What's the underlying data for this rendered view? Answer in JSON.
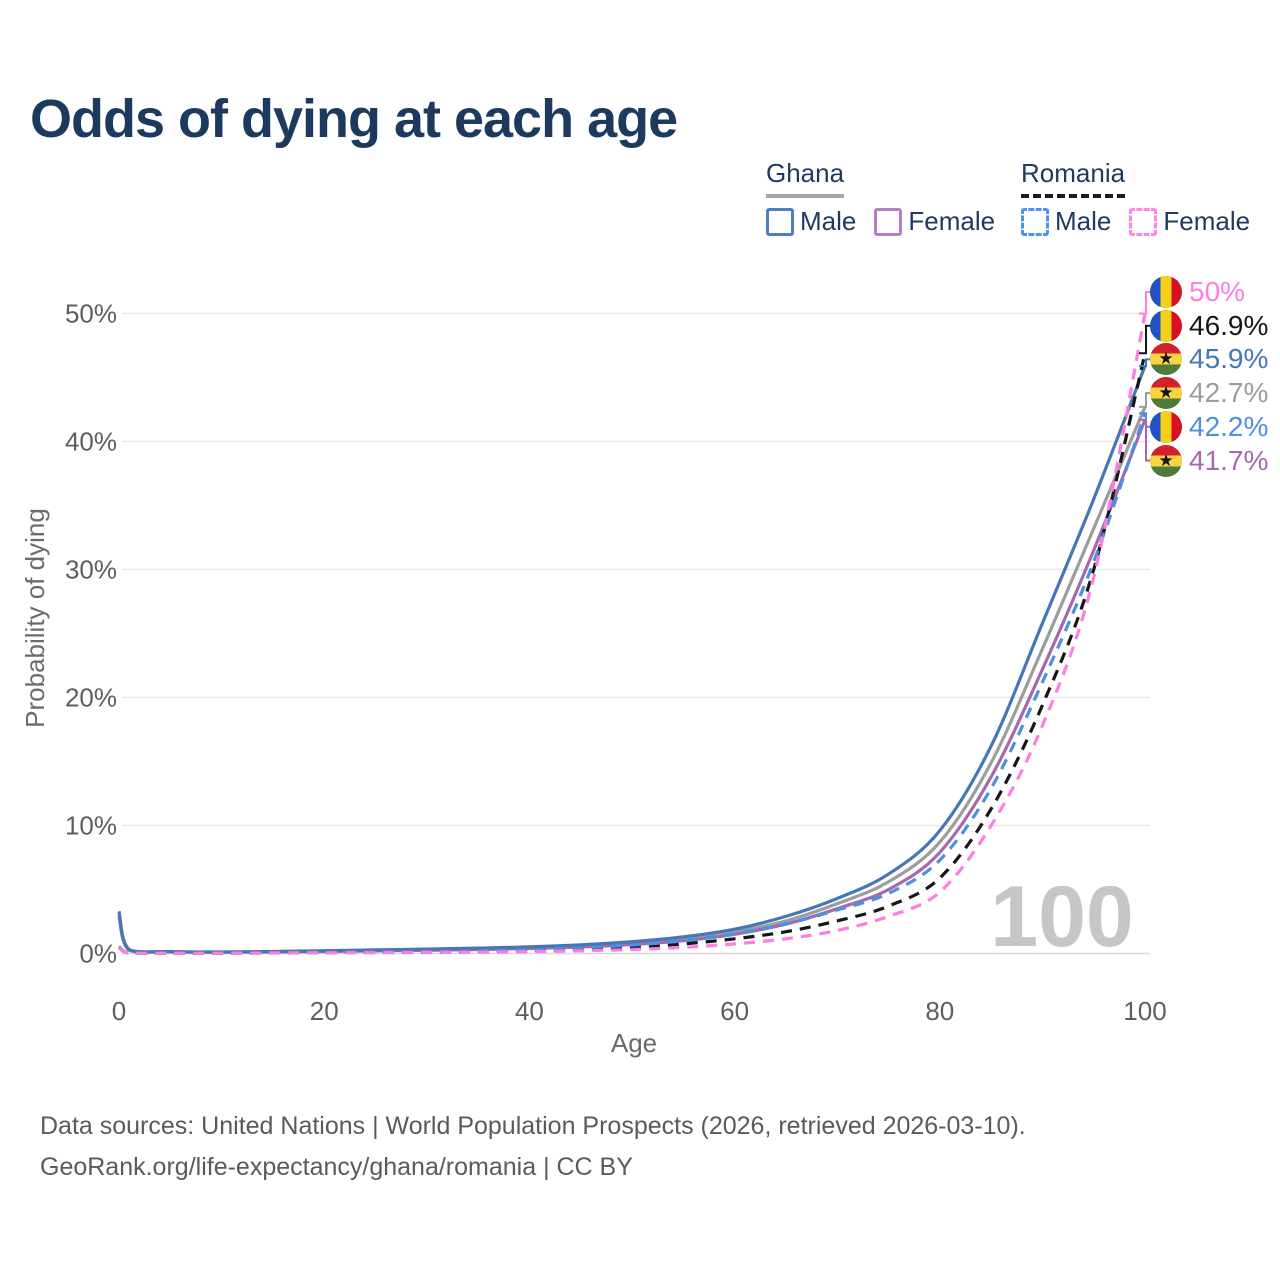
{
  "title": "Odds of dying at each age",
  "legend": {
    "ghana": {
      "title": "Ghana",
      "male_label": "Male",
      "female_label": "Female",
      "underline_color": "#a6a6a6",
      "underline_style": "solid",
      "male_swatch_color": "#4e7fc0",
      "female_swatch_color": "#b77ec4",
      "swatch_border_style": "solid"
    },
    "romania": {
      "title": "Romania",
      "male_label": "Male",
      "female_label": "Female",
      "underline_color": "#1a1a1a",
      "underline_style": "dashed",
      "male_swatch_color": "#4e94ea",
      "female_swatch_color": "#ff85e8",
      "swatch_border_style": "dashed"
    }
  },
  "axes": {
    "x_label": "Age",
    "y_label": "Probability of dying",
    "x_ticks": [
      {
        "value": 0,
        "label": "0"
      },
      {
        "value": 20,
        "label": "20"
      },
      {
        "value": 40,
        "label": "40"
      },
      {
        "value": 60,
        "label": "60"
      },
      {
        "value": 80,
        "label": "80"
      },
      {
        "value": 100,
        "label": "100"
      }
    ],
    "y_ticks": [
      {
        "value": 0,
        "label": "0%"
      },
      {
        "value": 10,
        "label": "10%"
      },
      {
        "value": 20,
        "label": "20%"
      },
      {
        "value": 30,
        "label": "30%"
      },
      {
        "value": 40,
        "label": "40%"
      },
      {
        "value": 50,
        "label": "50%"
      }
    ]
  },
  "watermark": "100",
  "footer": {
    "line1": "Data sources: United Nations | World Population Prospects (2026, retrieved 2026-03-10).",
    "line2": "GeoRank.org/life-expectancy/ghana/romania | CC BY"
  },
  "colors": {
    "title_text": "#1d3a5e",
    "legend_text": "#1e3a5f",
    "tick_text": "#5e5e5e",
    "axis_label_text": "#6b6b6b",
    "gridline": "#e8e8e8",
    "zero_gridline": "#dadada",
    "watermark": "#c6c6c6",
    "footer_text": "#5a5a5a"
  },
  "flags": {
    "ghana": {
      "orientation": "horizontal",
      "stripes": [
        "#d5202c",
        "#f9d443",
        "#4e7a3a"
      ],
      "star_glyph": "★"
    },
    "romania": {
      "orientation": "vertical",
      "stripes": [
        "#2151c4",
        "#f7d117",
        "#d91023"
      ],
      "star_glyph": ""
    }
  },
  "chart_data": {
    "type": "line",
    "title": "Odds of dying at each age",
    "xlabel": "Age",
    "ylabel": "Probability of dying",
    "xlim": [
      0,
      100
    ],
    "ylim_percent": [
      0,
      50
    ],
    "grid": "horizontal-only",
    "legend_position": "top-right",
    "x_ages": [
      0,
      1,
      5,
      10,
      15,
      20,
      25,
      30,
      35,
      40,
      45,
      50,
      55,
      60,
      65,
      70,
      75,
      80,
      85,
      90,
      95,
      100
    ],
    "series": [
      {
        "id": "ghana",
        "name": "Ghana",
        "country": "ghana",
        "sex": "all",
        "color": "#9c9c9c",
        "line_style": "solid",
        "end_label": "42.7%",
        "values_pct": [
          3.1,
          0.28,
          0.14,
          0.11,
          0.14,
          0.19,
          0.24,
          0.29,
          0.36,
          0.45,
          0.59,
          0.8,
          1.15,
          1.7,
          2.55,
          3.9,
          5.6,
          8.7,
          14.9,
          23.8,
          33.2,
          42.7
        ]
      },
      {
        "id": "ghana-female",
        "name": "Ghana Female",
        "country": "ghana",
        "sex": "female",
        "color": "#a569ae",
        "line_style": "solid",
        "end_label": "41.7%",
        "values_pct": [
          2.9,
          0.26,
          0.13,
          0.1,
          0.12,
          0.16,
          0.2,
          0.25,
          0.31,
          0.39,
          0.51,
          0.7,
          1.0,
          1.5,
          2.3,
          3.5,
          5.0,
          7.9,
          13.8,
          22.2,
          31.5,
          41.7
        ]
      },
      {
        "id": "ghana-male",
        "name": "Ghana Male",
        "country": "ghana",
        "sex": "male",
        "color": "#4576b5",
        "line_style": "solid",
        "end_label": "45.9%",
        "values_pct": [
          3.3,
          0.3,
          0.15,
          0.12,
          0.16,
          0.22,
          0.28,
          0.34,
          0.42,
          0.52,
          0.68,
          0.92,
          1.3,
          1.9,
          2.9,
          4.3,
          6.2,
          9.6,
          16.2,
          25.8,
          35.5,
          45.9
        ]
      },
      {
        "id": "romania",
        "name": "Romania",
        "country": "romania",
        "sex": "all",
        "color": "#161616",
        "line_style": "dashed",
        "end_label": "46.9%",
        "values_pct": [
          0.5,
          0.04,
          0.03,
          0.03,
          0.05,
          0.08,
          0.09,
          0.11,
          0.15,
          0.21,
          0.32,
          0.48,
          0.75,
          1.15,
          1.7,
          2.55,
          3.7,
          5.9,
          11.3,
          19.4,
          30.0,
          46.9
        ]
      },
      {
        "id": "romania-male",
        "name": "Romania Male",
        "country": "romania",
        "sex": "male",
        "color": "#4b90e2",
        "line_style": "dashed",
        "end_label": "42.2%",
        "values_pct": [
          0.55,
          0.05,
          0.03,
          0.03,
          0.06,
          0.1,
          0.12,
          0.15,
          0.2,
          0.29,
          0.44,
          0.66,
          1.0,
          1.55,
          2.3,
          3.4,
          4.7,
          7.3,
          12.9,
          21.2,
          30.6,
          42.2
        ]
      },
      {
        "id": "romania-female",
        "name": "Romania Female",
        "country": "romania",
        "sex": "female",
        "color": "#ff7ce0",
        "line_style": "dashed",
        "end_label": "50%",
        "values_pct": [
          0.45,
          0.04,
          0.02,
          0.02,
          0.04,
          0.05,
          0.06,
          0.08,
          0.1,
          0.14,
          0.21,
          0.31,
          0.48,
          0.75,
          1.15,
          1.8,
          2.9,
          4.8,
          10.0,
          17.8,
          29.4,
          50.0
        ]
      }
    ]
  }
}
